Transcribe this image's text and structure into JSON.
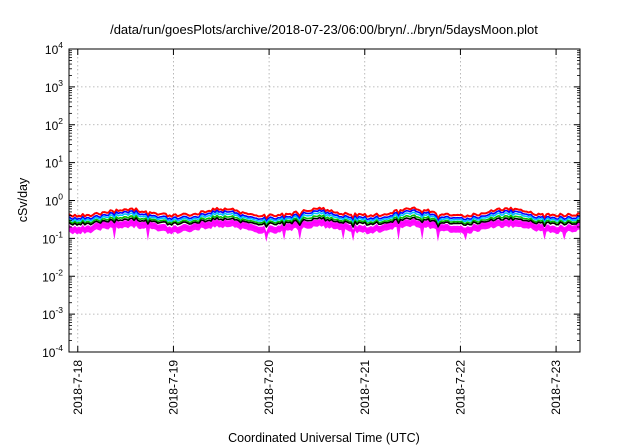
{
  "chart_data": {
    "type": "line",
    "title": "/data/run/goesPlots/archive/2018-07-23/06:00/bryn/../bryn/5daysMoon.plot",
    "xlabel": "Coordinated Universal Time (UTC)",
    "ylabel": "cSv/day",
    "yscale": "log",
    "ylim": [
      0.0001,
      10000
    ],
    "y_ticks": [
      {
        "base": "10",
        "exp": "4",
        "value": 10000
      },
      {
        "base": "10",
        "exp": "3",
        "value": 1000
      },
      {
        "base": "10",
        "exp": "2",
        "value": 100
      },
      {
        "base": "10",
        "exp": "1",
        "value": 10
      },
      {
        "base": "10",
        "exp": "0",
        "value": 1
      },
      {
        "base": "10",
        "exp": "-1",
        "value": 0.1
      },
      {
        "base": "10",
        "exp": "-2",
        "value": 0.01
      },
      {
        "base": "10",
        "exp": "-3",
        "value": 0.001
      },
      {
        "base": "10",
        "exp": "-4",
        "value": 0.0001
      }
    ],
    "xlim": [
      "2018-07-17 21:48",
      "2018-07-23 06:00"
    ],
    "x_ticks": [
      "2018-7-18",
      "2018-7-19",
      "2018-7-20",
      "2018-7-21",
      "2018-7-22",
      "2018-7-23"
    ],
    "grid": true,
    "legend": "none",
    "band_max_color": "#ff00ff",
    "band_min_color": "#ff00ff",
    "series": [
      {
        "color": "#ff0000",
        "x_start": "2018-07-17 21:48",
        "x_end": "2018-07-23 06:00",
        "baseline": 0.45,
        "day_peak": 0.6,
        "day_min": 0.33
      },
      {
        "color": "#0000ff",
        "x_start": "2018-07-17 21:48",
        "x_end": "2018-07-23 06:00",
        "baseline": 0.38,
        "day_peak": 0.52,
        "day_min": 0.28
      },
      {
        "color": "#00bfff",
        "x_start": "2018-07-17 21:48",
        "x_end": "2018-07-23 06:00",
        "baseline": 0.34,
        "day_peak": 0.45,
        "day_min": 0.25
      },
      {
        "color": "#00c000",
        "x_start": "2018-07-17 21:48",
        "x_end": "2018-07-23 06:00",
        "baseline": 0.3,
        "day_peak": 0.38,
        "day_min": 0.22
      },
      {
        "color": "#000000",
        "x_start": "2018-07-17 21:48",
        "x_end": "2018-07-23 06:00",
        "baseline": 0.27,
        "day_peak": 0.33,
        "day_min": 0.2
      },
      {
        "color": "#ff00ff",
        "x_start": "2018-07-17 21:48",
        "x_end": "2018-07-23 06:00",
        "baseline": 0.22,
        "day_peak": 0.26,
        "day_min": 0.1
      }
    ]
  }
}
